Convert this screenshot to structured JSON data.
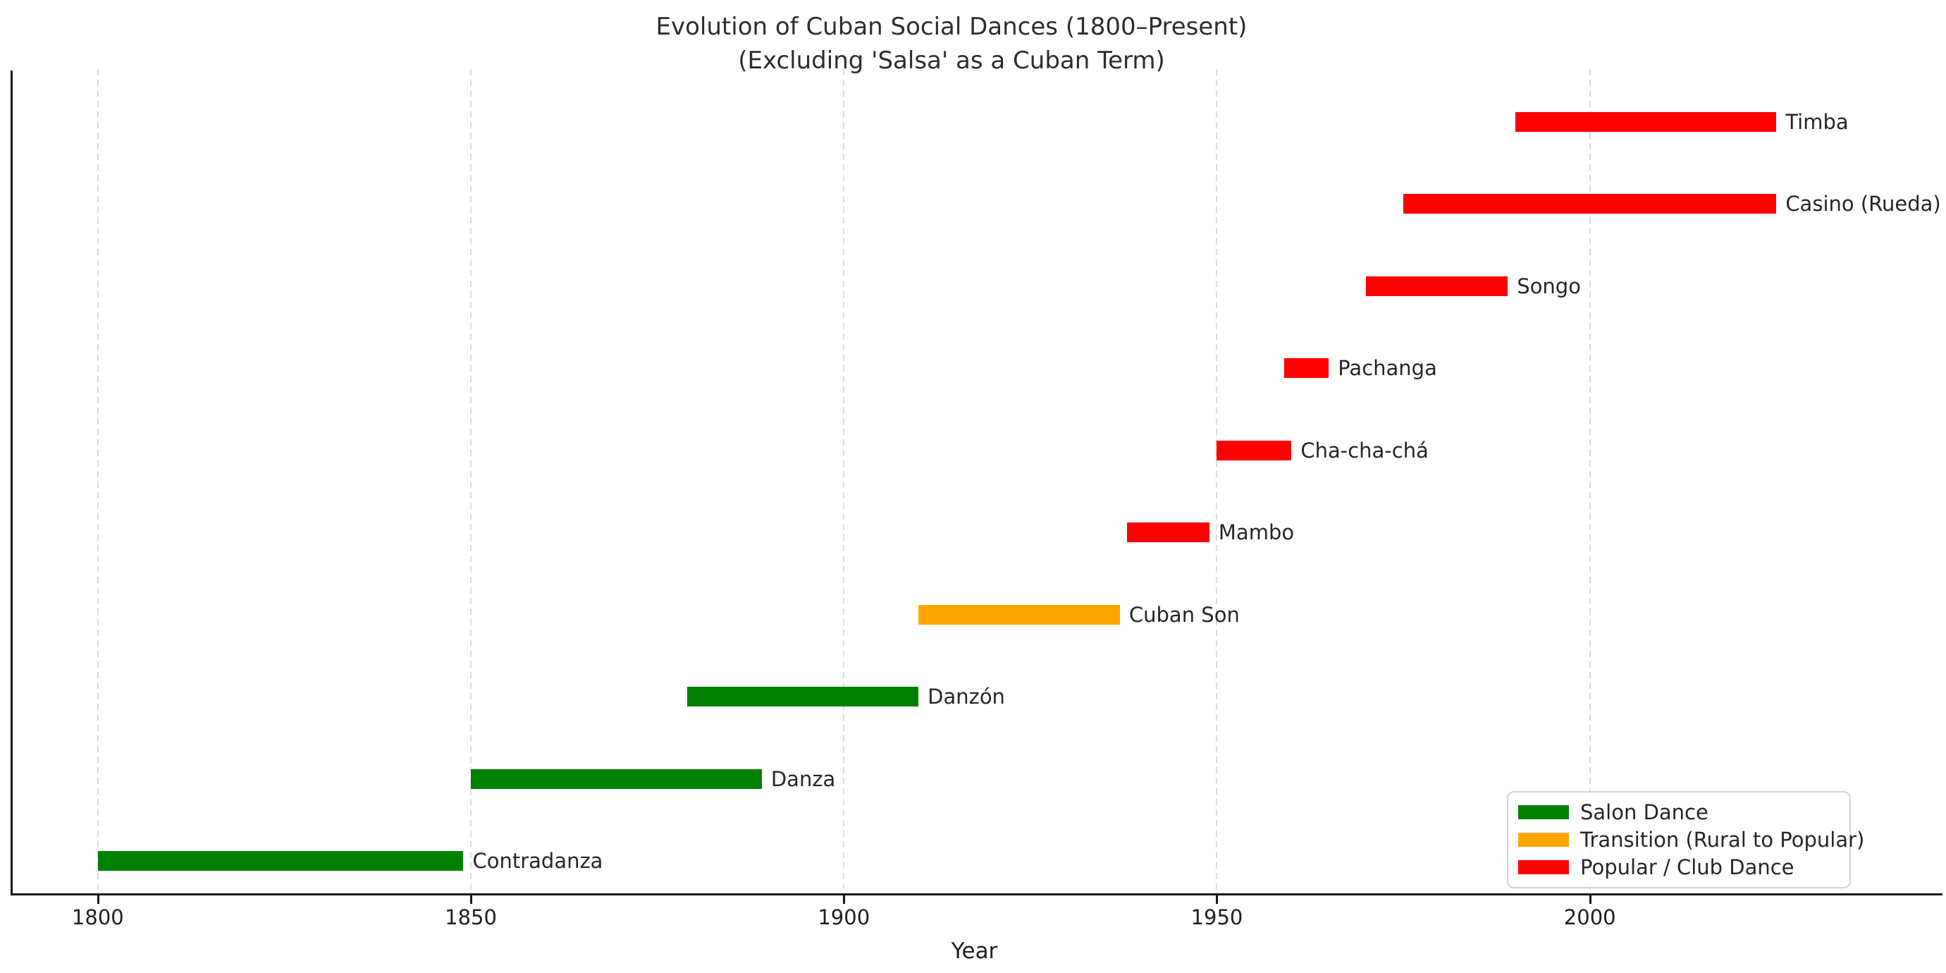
{
  "chart_data": {
    "type": "bar",
    "orientation": "horizontal-gantt",
    "title_line1": "Evolution of Cuban Social Dances (1800–Present)",
    "title_line2": "(Excluding 'Salsa' as a Cuban Term)",
    "xlabel": "Year",
    "x_ticks": [
      1800,
      1850,
      1900,
      1950,
      2000
    ],
    "xlim": [
      1788.3,
      2046.7
    ],
    "grid": "vertical-dashed",
    "legend_position": "lower right",
    "bars": [
      {
        "label": "Timba",
        "start": 1990,
        "end": 2025,
        "category": "popular"
      },
      {
        "label": "Casino (Rueda)",
        "start": 1975,
        "end": 2025,
        "category": "popular"
      },
      {
        "label": "Songo",
        "start": 1970,
        "end": 1989,
        "category": "popular"
      },
      {
        "label": "Pachanga",
        "start": 1959,
        "end": 1965,
        "category": "popular"
      },
      {
        "label": "Cha-cha-chá",
        "start": 1950,
        "end": 1960,
        "category": "popular"
      },
      {
        "label": "Mambo",
        "start": 1938,
        "end": 1949,
        "category": "popular"
      },
      {
        "label": "Cuban Son",
        "start": 1910,
        "end": 1937,
        "category": "transition"
      },
      {
        "label": "Danzón",
        "start": 1879,
        "end": 1910,
        "category": "salon"
      },
      {
        "label": "Danza",
        "start": 1850,
        "end": 1889,
        "category": "salon"
      },
      {
        "label": "Contradanza",
        "start": 1800,
        "end": 1849,
        "category": "salon"
      }
    ],
    "colors": {
      "salon": "#008000",
      "transition": "#FFA500",
      "popular": "#FF0000"
    },
    "legend": [
      {
        "label": "Salon Dance",
        "color": "#008000"
      },
      {
        "label": "Transition (Rural to Popular)",
        "color": "#FFA500"
      },
      {
        "label": "Popular / Club Dance",
        "color": "#FF0000"
      }
    ]
  }
}
